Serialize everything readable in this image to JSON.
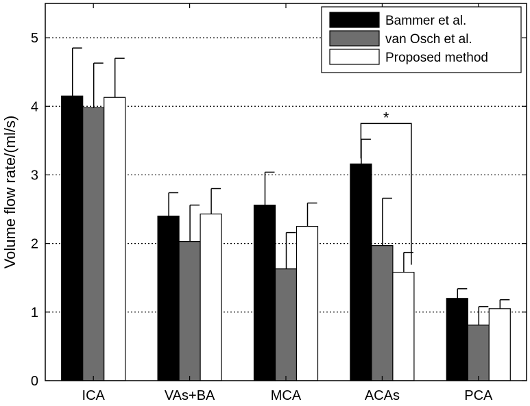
{
  "chart_data": {
    "type": "bar",
    "title": "",
    "xlabel": "",
    "ylabel": "Volume flow rate/(ml/s)",
    "ylim": [
      0,
      5.5
    ],
    "yticks": [
      0,
      1,
      2,
      3,
      4,
      5
    ],
    "grid": "horizontal-dotted",
    "legend_position": "top-right",
    "categories": [
      "ICA",
      "VAs+BA",
      "MCA",
      "ACAs",
      "PCA"
    ],
    "series": [
      {
        "name": "Bammer et al.",
        "color": "#000000",
        "values": [
          4.15,
          2.4,
          2.56,
          3.16,
          1.2
        ],
        "errors": [
          0.7,
          0.34,
          0.48,
          0.36,
          0.14
        ]
      },
      {
        "name": "van Osch et al.",
        "color": "#6e6e6e",
        "values": [
          3.98,
          2.03,
          1.63,
          1.97,
          0.81
        ],
        "errors": [
          0.65,
          0.53,
          0.53,
          0.69,
          0.27
        ]
      },
      {
        "name": "Proposed method",
        "color": "#ffffff",
        "values": [
          4.13,
          2.43,
          2.25,
          1.58,
          1.05
        ],
        "errors": [
          0.57,
          0.37,
          0.34,
          0.29,
          0.13
        ]
      }
    ],
    "annotations": [
      {
        "text": "*",
        "category": "ACAs",
        "between_series": [
          "Bammer et al.",
          "Proposed method"
        ],
        "level": 3.75
      }
    ]
  }
}
